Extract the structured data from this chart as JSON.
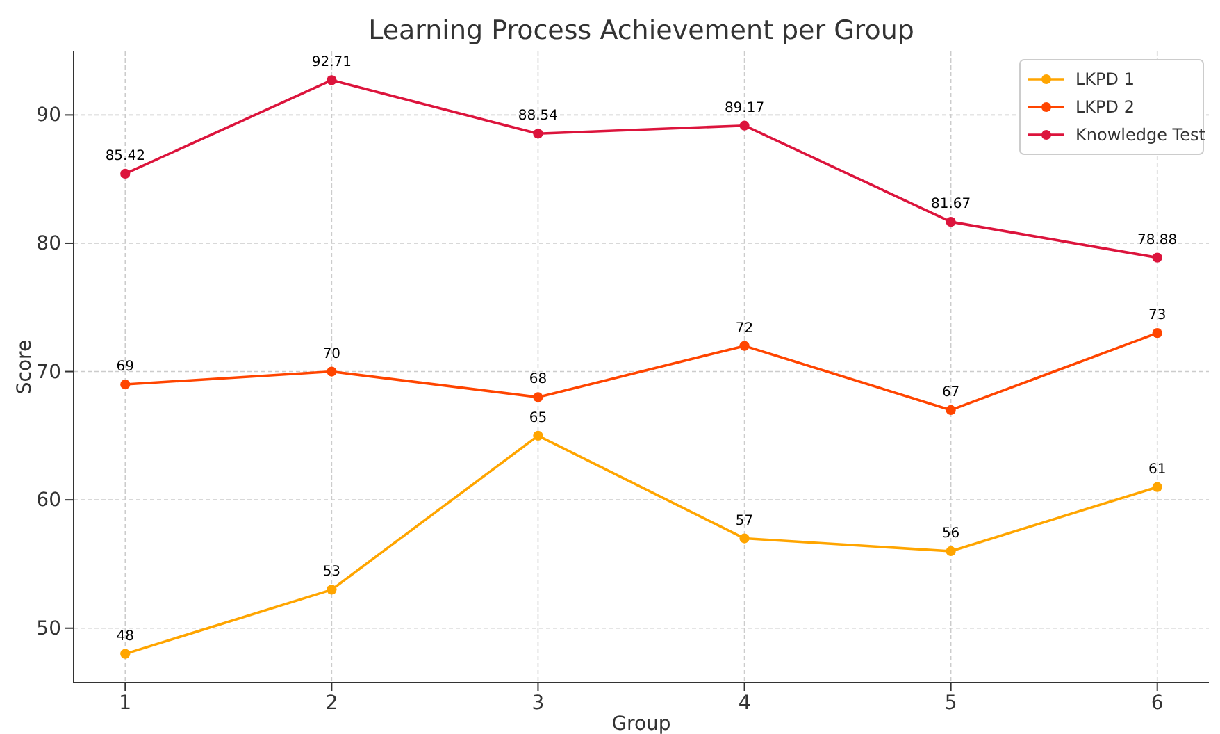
{
  "chart_data": {
    "type": "line",
    "title": "Learning Process Achievement per Group",
    "xlabel": "Group",
    "ylabel": "Score",
    "x": [
      1,
      2,
      3,
      4,
      5,
      6
    ],
    "series": [
      {
        "name": "LKPD 1",
        "color": "#ffa500",
        "values": [
          48,
          53,
          65,
          57,
          56,
          61
        ]
      },
      {
        "name": "LKPD 2",
        "color": "#ff4500",
        "values": [
          69,
          70,
          68,
          72,
          67,
          73
        ]
      },
      {
        "name": "Knowledge Test",
        "color": "#dc143c",
        "values": [
          85.42,
          92.71,
          88.54,
          89.17,
          81.67,
          78.88
        ]
      }
    ],
    "xlim": [
      0.75,
      6.25
    ],
    "xticks": [
      1,
      2,
      3,
      4,
      5,
      6
    ],
    "ylim": [
      45.76,
      94.95
    ],
    "yticks": [
      50,
      60,
      70,
      80,
      90
    ],
    "grid": true,
    "legend": "top right",
    "marker": "circle",
    "line_style": "solid",
    "data_labels": true
  }
}
